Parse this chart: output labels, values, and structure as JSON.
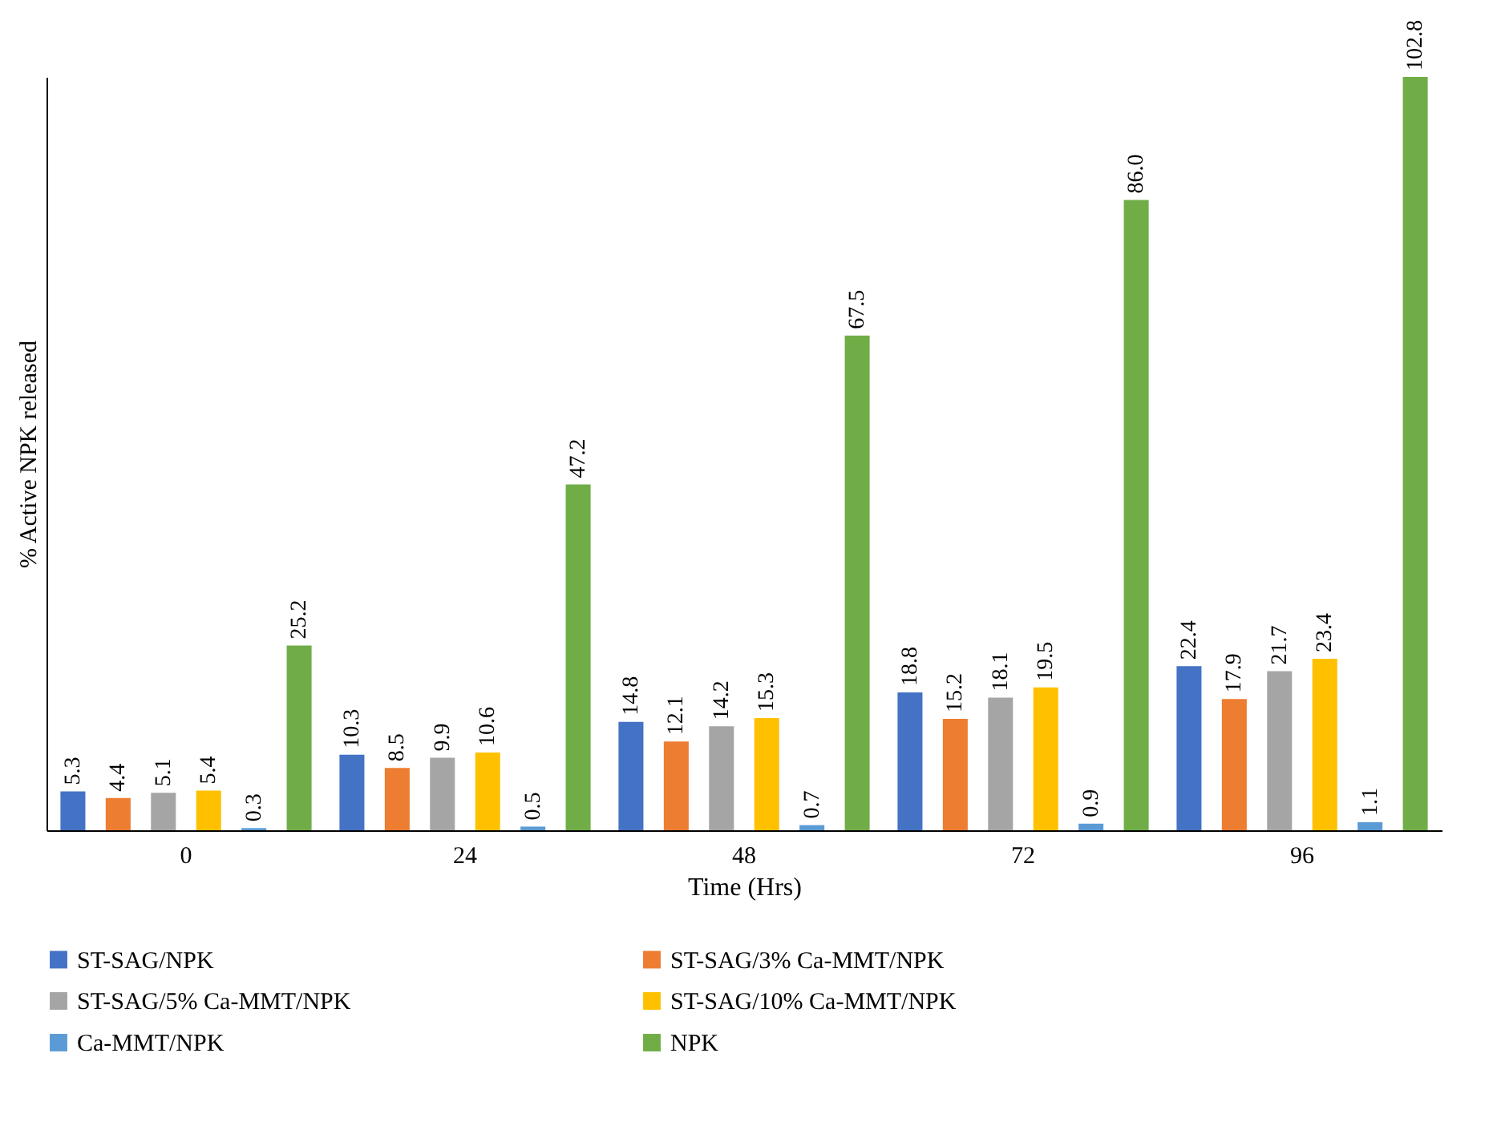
{
  "chart_data": {
    "type": "bar",
    "xlabel": "Time (Hrs)",
    "ylabel": "% Active NPK released",
    "categories": [
      "0",
      "24",
      "48",
      "72",
      "96"
    ],
    "series": [
      {
        "name": "ST-SAG/NPK",
        "color": "#4472c4",
        "values": [
          5.3,
          10.3,
          14.8,
          18.8,
          22.4
        ]
      },
      {
        "name": "ST-SAG/3% Ca-MMT/NPK",
        "color": "#ed7d31",
        "values": [
          4.4,
          8.5,
          12.1,
          15.2,
          17.9
        ]
      },
      {
        "name": "ST-SAG/5% Ca-MMT/NPK",
        "color": "#a5a5a5",
        "values": [
          5.1,
          9.9,
          14.2,
          18.1,
          21.7
        ]
      },
      {
        "name": "ST-SAG/10% Ca-MMT/NPK",
        "color": "#ffc000",
        "values": [
          5.4,
          10.6,
          15.3,
          19.5,
          23.4
        ]
      },
      {
        "name": "Ca-MMT/NPK",
        "color": "#5b9bd5",
        "values": [
          0.3,
          0.5,
          0.7,
          0.9,
          1.1
        ]
      },
      {
        "name": "NPK",
        "color": "#70ad47",
        "values": [
          25.2,
          47.2,
          67.5,
          86.0,
          102.8
        ],
        "value_labels": [
          "25.2",
          "47.2",
          "67.5",
          "86.0",
          "102.8"
        ]
      }
    ],
    "data_labels": true,
    "legend": "bottom",
    "grid": false,
    "tick_labels": "x"
  }
}
